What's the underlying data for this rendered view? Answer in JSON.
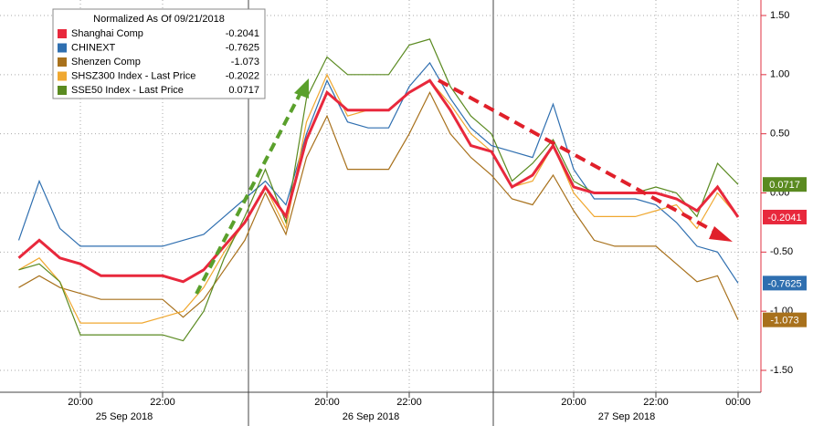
{
  "chart_data": {
    "type": "line",
    "legend_title": "Normalized As Of 09/21/2018",
    "categories": [
      null,
      null,
      null,
      "20:00",
      null,
      null,
      null,
      "22:00",
      null,
      null,
      null,
      null,
      null,
      null,
      null,
      "20:00",
      null,
      null,
      null,
      "22:00",
      null,
      null,
      null,
      null,
      null,
      null,
      null,
      "20:00",
      null,
      null,
      null,
      "22:00",
      null,
      null,
      null,
      "00:00"
    ],
    "date_labels": [
      "25 Sep 2018",
      "26 Sep 2018",
      "27 Sep 2018"
    ],
    "ylim": [
      -1.75,
      1.65
    ],
    "yticks": [
      {
        "value": 1.5,
        "label": "1.50"
      },
      {
        "value": 1.0,
        "label": "1.00"
      },
      {
        "value": 0.5,
        "label": "0.50"
      },
      {
        "value": 0.0,
        "label": "0.00"
      },
      {
        "value": -0.5,
        "label": "-0.50"
      },
      {
        "value": -1.0,
        "label": "-1.00"
      },
      {
        "value": -1.5,
        "label": "-1.50"
      }
    ],
    "grid": true,
    "series": [
      {
        "name": "Shanghai Comp",
        "color": "#e8283c",
        "values": [
          -0.55,
          -0.4,
          -0.55,
          -0.6,
          -0.7,
          -0.7,
          -0.7,
          -0.7,
          -0.75,
          -0.65,
          -0.45,
          -0.25,
          0.05,
          -0.2,
          0.45,
          0.85,
          0.7,
          0.7,
          0.7,
          0.85,
          0.95,
          0.7,
          0.4,
          0.35,
          0.05,
          0.15,
          0.4,
          0.05,
          0.0,
          0.0,
          0.0,
          0.0,
          -0.05,
          -0.15,
          0.05,
          -0.2041
        ]
      },
      {
        "name": "CHINEXT",
        "color": "#2f6fb0",
        "values": [
          -0.4,
          0.1,
          -0.3,
          -0.45,
          -0.45,
          -0.45,
          -0.45,
          -0.45,
          -0.4,
          -0.35,
          -0.2,
          -0.05,
          0.1,
          -0.1,
          0.5,
          0.95,
          0.6,
          0.55,
          0.55,
          0.9,
          1.1,
          0.8,
          0.55,
          0.4,
          0.35,
          0.3,
          0.75,
          0.2,
          -0.05,
          -0.05,
          -0.05,
          -0.1,
          -0.25,
          -0.45,
          -0.5,
          -0.7625
        ]
      },
      {
        "name": "Shenzen Comp",
        "color": "#a8711c",
        "values": [
          -0.8,
          -0.7,
          -0.8,
          -0.85,
          -0.9,
          -0.9,
          -0.9,
          -0.9,
          -1.05,
          -0.9,
          -0.65,
          -0.4,
          0.0,
          -0.35,
          0.3,
          0.65,
          0.2,
          0.2,
          0.2,
          0.5,
          0.85,
          0.5,
          0.3,
          0.15,
          -0.05,
          -0.1,
          0.15,
          -0.15,
          -0.4,
          -0.45,
          -0.45,
          -0.45,
          -0.6,
          -0.75,
          -0.7,
          -1.073
        ]
      },
      {
        "name": "SHSZ300 Index - Last Price",
        "color": "#f0a830",
        "values": [
          -0.65,
          -0.55,
          -0.75,
          -1.1,
          -1.1,
          -1.1,
          -1.1,
          -1.05,
          -1.0,
          -0.8,
          -0.5,
          -0.25,
          0.05,
          -0.3,
          0.6,
          1.0,
          0.65,
          0.7,
          0.7,
          0.85,
          0.95,
          0.75,
          0.5,
          0.35,
          0.05,
          0.1,
          0.4,
          0.0,
          -0.2,
          -0.2,
          -0.2,
          -0.15,
          -0.1,
          -0.3,
          0.0,
          -0.2022
        ]
      },
      {
        "name": "SSE50 Index - Last Price",
        "color": "#5a8a20",
        "values": [
          -0.65,
          -0.6,
          -0.75,
          -1.2,
          -1.2,
          -1.2,
          -1.2,
          -1.2,
          -1.25,
          -1.0,
          -0.55,
          -0.2,
          0.2,
          -0.25,
          0.8,
          1.15,
          1.0,
          1.0,
          1.0,
          1.25,
          1.3,
          0.9,
          0.65,
          0.5,
          0.1,
          0.25,
          0.45,
          0.1,
          0.0,
          0.0,
          0.0,
          0.05,
          0.0,
          -0.2,
          0.25,
          0.0717
        ]
      }
    ]
  }
}
